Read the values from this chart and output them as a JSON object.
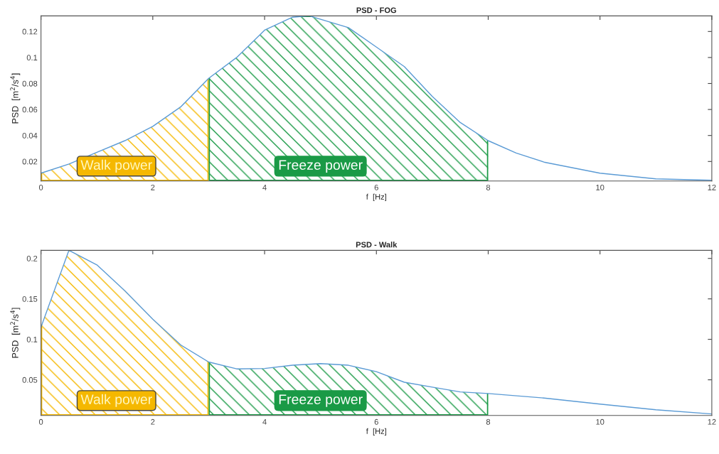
{
  "chart_data": [
    {
      "type": "line",
      "title": "PSD - FOG",
      "xlabel": "f  [Hz]",
      "ylabel": "PSD  [m$^{2}$/s$^{4}$]",
      "x": [
        0,
        0.5,
        1,
        1.5,
        2,
        2.5,
        3,
        3.5,
        4,
        4.5,
        4.8,
        5.5,
        6,
        6.5,
        7,
        7.5,
        8,
        8.5,
        9,
        10,
        11,
        12
      ],
      "series": [
        {
          "color": "#5b9bd5",
          "values": [
            0.011,
            0.018,
            0.027,
            0.036,
            0.047,
            0.062,
            0.084,
            0.1,
            0.121,
            0.131,
            0.132,
            0.123,
            0.108,
            0.093,
            0.07,
            0.05,
            0.036,
            0.0265,
            0.0195,
            0.011,
            0.0066,
            0.0055
          ]
        }
      ],
      "xlim": [
        0,
        12
      ],
      "xticks": [
        0,
        2,
        4,
        6,
        8,
        10,
        12
      ],
      "ylim": [
        0.005,
        0.132
      ],
      "yticks": [
        0.02,
        0.04,
        0.06,
        0.08,
        0.1,
        0.12
      ],
      "bands": [
        {
          "axis": "x",
          "from": 0,
          "to": 3,
          "label": "Walk power",
          "color": "#f5b800"
        },
        {
          "axis": "x",
          "from": 3,
          "to": 8,
          "label": "Freeze power",
          "color": "#1a9a46"
        }
      ],
      "grid": false,
      "legend": false
    },
    {
      "type": "line",
      "title": "PSD - Walk",
      "xlabel": "f  [Hz]",
      "ylabel": "PSD  [m$^{2}$/s$^{4}$]",
      "x": [
        0,
        0.5,
        1,
        1.5,
        2,
        2.5,
        3,
        3.5,
        4,
        4.5,
        5,
        5.5,
        6,
        6.5,
        7,
        7.5,
        8,
        9,
        10,
        11,
        12
      ],
      "series": [
        {
          "color": "#5b9bd5",
          "values": [
            0.115,
            0.21,
            0.192,
            0.16,
            0.125,
            0.093,
            0.072,
            0.0635,
            0.064,
            0.068,
            0.07,
            0.068,
            0.06,
            0.047,
            0.041,
            0.035,
            0.033,
            0.0275,
            0.02,
            0.013,
            0.0078
          ]
        }
      ],
      "xlim": [
        0,
        12
      ],
      "xticks": [
        0,
        2,
        4,
        6,
        8,
        10,
        12
      ],
      "ylim": [
        0.006,
        0.21
      ],
      "yticks": [
        0.05,
        0.1,
        0.15,
        0.2
      ],
      "bands": [
        {
          "axis": "x",
          "from": 0,
          "to": 3,
          "label": "Walk power",
          "color": "#f5b800"
        },
        {
          "axis": "x",
          "from": 3,
          "to": 8,
          "label": "Freeze power",
          "color": "#1a9a46"
        }
      ],
      "grid": false,
      "legend": false
    }
  ]
}
